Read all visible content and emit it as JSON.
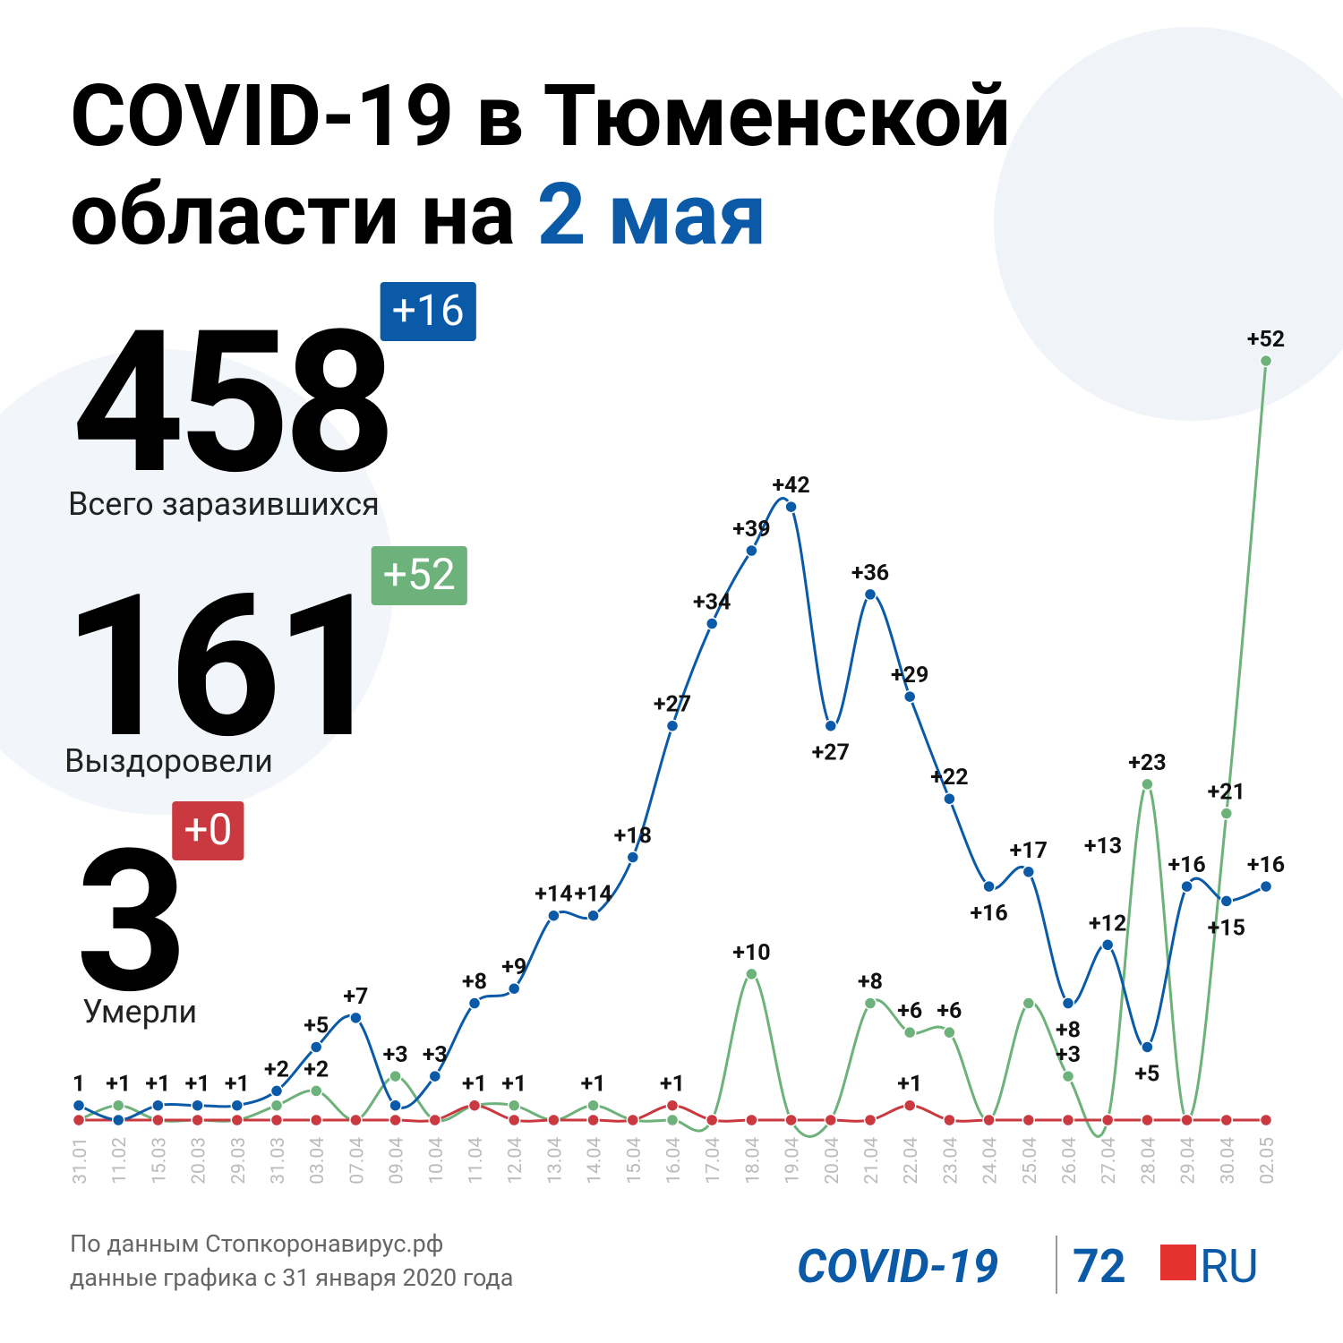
{
  "header": {
    "title_line1": "COVID-19 в Тюменской",
    "title_line2": "области на",
    "title_date": "2 мая"
  },
  "stats": [
    {
      "value": "458",
      "delta": "+16",
      "label": "Всего заразившихся",
      "color": "#0a5aa8"
    },
    {
      "value": "161",
      "delta": "+52",
      "label": "Выздоровели",
      "color": "#6db27a"
    },
    {
      "value": "3",
      "delta": "+0",
      "label": "Умерли",
      "color": "#c9393f"
    }
  ],
  "chart_data": {
    "type": "line",
    "categories": [
      "31.01",
      "11.02",
      "15.03",
      "20.03",
      "29.03",
      "31.03",
      "03.04",
      "07.04",
      "09.04",
      "10.04",
      "11.04",
      "12.04",
      "13.04",
      "14.04",
      "15.04",
      "16.04",
      "17.04",
      "18.04",
      "19.04",
      "20.04",
      "21.04",
      "22.04",
      "23.04",
      "24.04",
      "25.04",
      "26.04",
      "27.04",
      "28.04",
      "29.04",
      "30.04",
      "02.05"
    ],
    "ylim": [
      0,
      52
    ],
    "series": [
      {
        "name": "Заразившихся",
        "color": "#0a5aa8",
        "values": [
          1,
          0,
          1,
          1,
          1,
          2,
          5,
          7,
          1,
          3,
          8,
          9,
          14,
          14,
          18,
          27,
          34,
          39,
          42,
          27,
          36,
          29,
          22,
          16,
          17,
          8,
          12,
          5,
          16,
          15,
          16
        ],
        "value_labels": [
          "1",
          null,
          "+1",
          "+1",
          "+1",
          "+2",
          "+5",
          "+7",
          null,
          "+3",
          "+8",
          "+9",
          "+14",
          "+14",
          "+18",
          "+27",
          "+34",
          "+39",
          "+42",
          "+27",
          "+36",
          "+29",
          "+22",
          "+16",
          "+17",
          "+8",
          "+12",
          "+5",
          "+16",
          "+15",
          "+16"
        ]
      },
      {
        "name": "Выздоровели",
        "color": "#6db27a",
        "values": [
          0,
          1,
          0,
          0,
          0,
          1,
          2,
          0,
          3,
          0,
          1,
          1,
          0,
          1,
          0,
          0,
          0,
          10,
          0,
          0,
          8,
          6,
          6,
          0,
          8,
          3,
          0,
          23,
          0,
          21,
          52
        ],
        "value_labels": [
          null,
          "+1",
          null,
          null,
          null,
          null,
          "+2",
          null,
          "+3",
          null,
          null,
          "+1",
          null,
          "+1",
          null,
          null,
          null,
          "+10",
          null,
          null,
          "+8",
          "+6",
          "+6",
          null,
          null,
          "+3",
          null,
          "+23",
          null,
          "+21",
          "+52"
        ]
      },
      {
        "name": "Умерли",
        "color": "#c9393f",
        "values": [
          0,
          0,
          0,
          0,
          0,
          0,
          0,
          0,
          0,
          0,
          1,
          0,
          0,
          0,
          0,
          1,
          0,
          0,
          0,
          0,
          0,
          1,
          0,
          0,
          0,
          0,
          0,
          0,
          0,
          0,
          0
        ],
        "value_labels": [
          null,
          null,
          null,
          null,
          null,
          null,
          null,
          null,
          null,
          null,
          "+1",
          null,
          null,
          null,
          null,
          "+1",
          null,
          null,
          null,
          null,
          null,
          "+1",
          null,
          null,
          null,
          null,
          null,
          null,
          null,
          null,
          null
        ]
      }
    ],
    "annotation": "+13"
  },
  "footer": {
    "source_line1": "По данным Стопкоронавирус.рф",
    "source_line2": "данные графика с 31 января 2020 года",
    "logo_left": "COVID-19",
    "logo_num": "72",
    "logo_ru": "RU"
  }
}
